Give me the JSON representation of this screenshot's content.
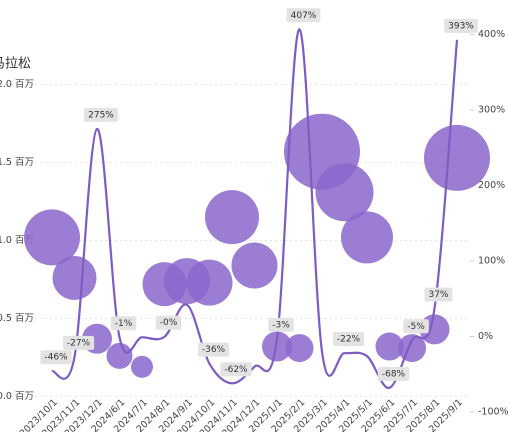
{
  "chart_data": {
    "type": "bubble-line",
    "title": "马拉松",
    "categories": [
      "2023/10/1",
      "2023/11/1",
      "2023/12/1",
      "2024/6/1",
      "2024/7/1",
      "2024/8/1",
      "2024/9/1",
      "2024/10/1",
      "2024/11/1",
      "2024/12/1",
      "2025/1/1",
      "2025/2/1",
      "2025/3/1",
      "2025/4/1",
      "2025/5/1",
      "2025/6/1",
      "2025/7/1",
      "2025/8/1",
      "2025/9/1"
    ],
    "series": [
      {
        "name": "bubble",
        "color": "#8a66cc",
        "values": [
          1.02,
          0.76,
          0.37,
          0.26,
          0.19,
          0.72,
          0.74,
          0.73,
          1.15,
          0.84,
          0.32,
          0.31,
          1.57,
          1.31,
          1.02,
          0.32,
          0.31,
          0.43,
          1.53
        ],
        "sizes": [
          28,
          22,
          15,
          13,
          11,
          22,
          23,
          23,
          27,
          23,
          15,
          14,
          38,
          29,
          26,
          14,
          14,
          15,
          33
        ]
      },
      {
        "name": "growth",
        "color": "#7e5cc4",
        "axis": "y2",
        "values": [
          -46,
          -27,
          275,
          -1,
          -1,
          -0.3,
          42,
          -36,
          -62,
          -40,
          -3,
          407,
          -20,
          -22,
          -26,
          -68,
          -5,
          37,
          393
        ],
        "value_labels": [
          "-46%",
          "-27%",
          "275%",
          "-1%",
          null,
          "-0%",
          null,
          "-36%",
          "-62%",
          null,
          "-3%",
          "407%",
          null,
          "-22%",
          null,
          "-68%",
          "-5%",
          "37%",
          "393%"
        ]
      }
    ],
    "ylim": [
      -0.1,
      2.37
    ],
    "yticks": [
      {
        "value": 0,
        "label": "0.0 百万"
      },
      {
        "value": 0.5,
        "label": "0.5 百万"
      },
      {
        "value": 1,
        "label": "1.0 百万"
      },
      {
        "value": 1.5,
        "label": "1.5 百万"
      },
      {
        "value": 2,
        "label": "2.0 百万"
      }
    ],
    "y2lim": [
      -100,
      410
    ],
    "y2ticks": [
      {
        "value": -100,
        "label": "-100%"
      },
      {
        "value": 0,
        "label": "0%"
      },
      {
        "value": 100,
        "label": "100%"
      },
      {
        "value": 200,
        "label": "200%"
      },
      {
        "value": 300,
        "label": "300%"
      },
      {
        "value": 400,
        "label": "400%"
      }
    ],
    "grid": true
  }
}
